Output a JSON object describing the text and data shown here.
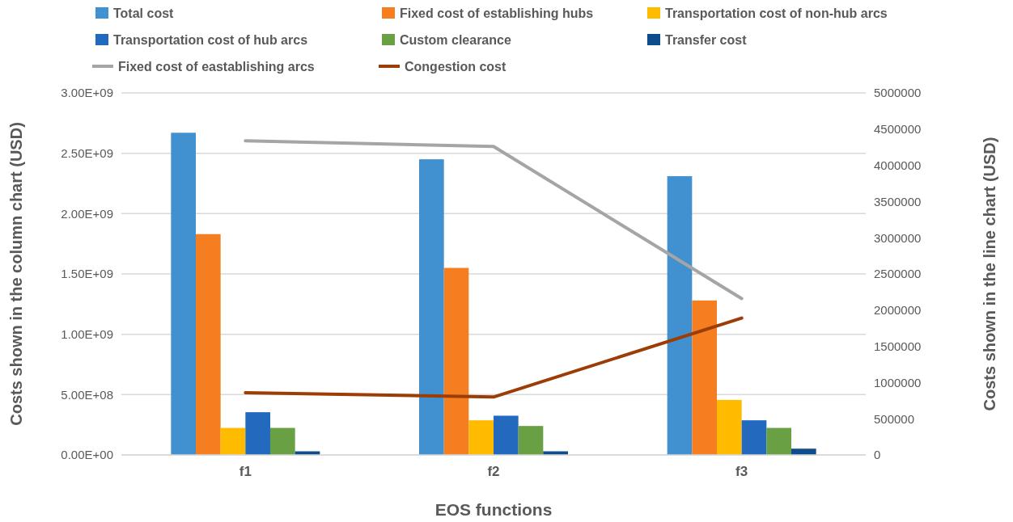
{
  "chart_data": {
    "type": "bar",
    "xlabel": "EOS functions",
    "ylabel": "Costs shown in the column chart (USD)",
    "y2label": "Costs shown in the line chart  (USD)",
    "categories": [
      "f1",
      "f2",
      "f3"
    ],
    "series": [
      {
        "name": "Total cost",
        "color": "#4191d0",
        "values": [
          2670000000,
          2450000000,
          2310000000
        ]
      },
      {
        "name": "Fixed cost of establishing hubs",
        "color": "#f57f20",
        "values": [
          1830000000,
          1550000000,
          1280000000
        ]
      },
      {
        "name": "Transportation cost of non-hub arcs",
        "color": "#ffbb00",
        "values": [
          224000000,
          287000000,
          456000000
        ]
      },
      {
        "name": "Transportation cost of hub arcs",
        "color": "#2369be",
        "values": [
          354000000,
          325000000,
          287000000
        ]
      },
      {
        "name": "Custom clearance",
        "color": "#68a043",
        "values": [
          224000000,
          240000000,
          224000000
        ]
      },
      {
        "name": "Transfer cost",
        "color": "#0e4c8c",
        "values": [
          30000000,
          30000000,
          52000000
        ]
      },
      {
        "name": "Fixed cost of eastablishing arcs",
        "color": "#a5a5a5",
        "type": "line",
        "axis": "y2",
        "values": [
          4340000,
          4260000,
          2160000
        ]
      },
      {
        "name": "Congestion cost",
        "color": "#9c3d06",
        "type": "line",
        "axis": "y2",
        "values": [
          860000,
          800000,
          1890000
        ]
      }
    ],
    "ylim": [
      0,
      3000000000
    ],
    "yticks": [
      {
        "value": 0,
        "label": "0.00E+00"
      },
      {
        "value": 500000000,
        "label": "5.00E+08"
      },
      {
        "value": 1000000000,
        "label": "1.00E+09"
      },
      {
        "value": 1500000000,
        "label": "1.50E+09"
      },
      {
        "value": 2000000000,
        "label": "2.00E+09"
      },
      {
        "value": 2500000000,
        "label": "2.50E+09"
      },
      {
        "value": 3000000000,
        "label": "3.00E+09"
      }
    ],
    "y2lim": [
      0,
      5000000
    ],
    "y2ticks": [
      0,
      500000,
      1000000,
      1500000,
      2000000,
      2500000,
      3000000,
      3500000,
      4000000,
      4500000,
      5000000
    ],
    "grid": "y",
    "legend": "top"
  }
}
